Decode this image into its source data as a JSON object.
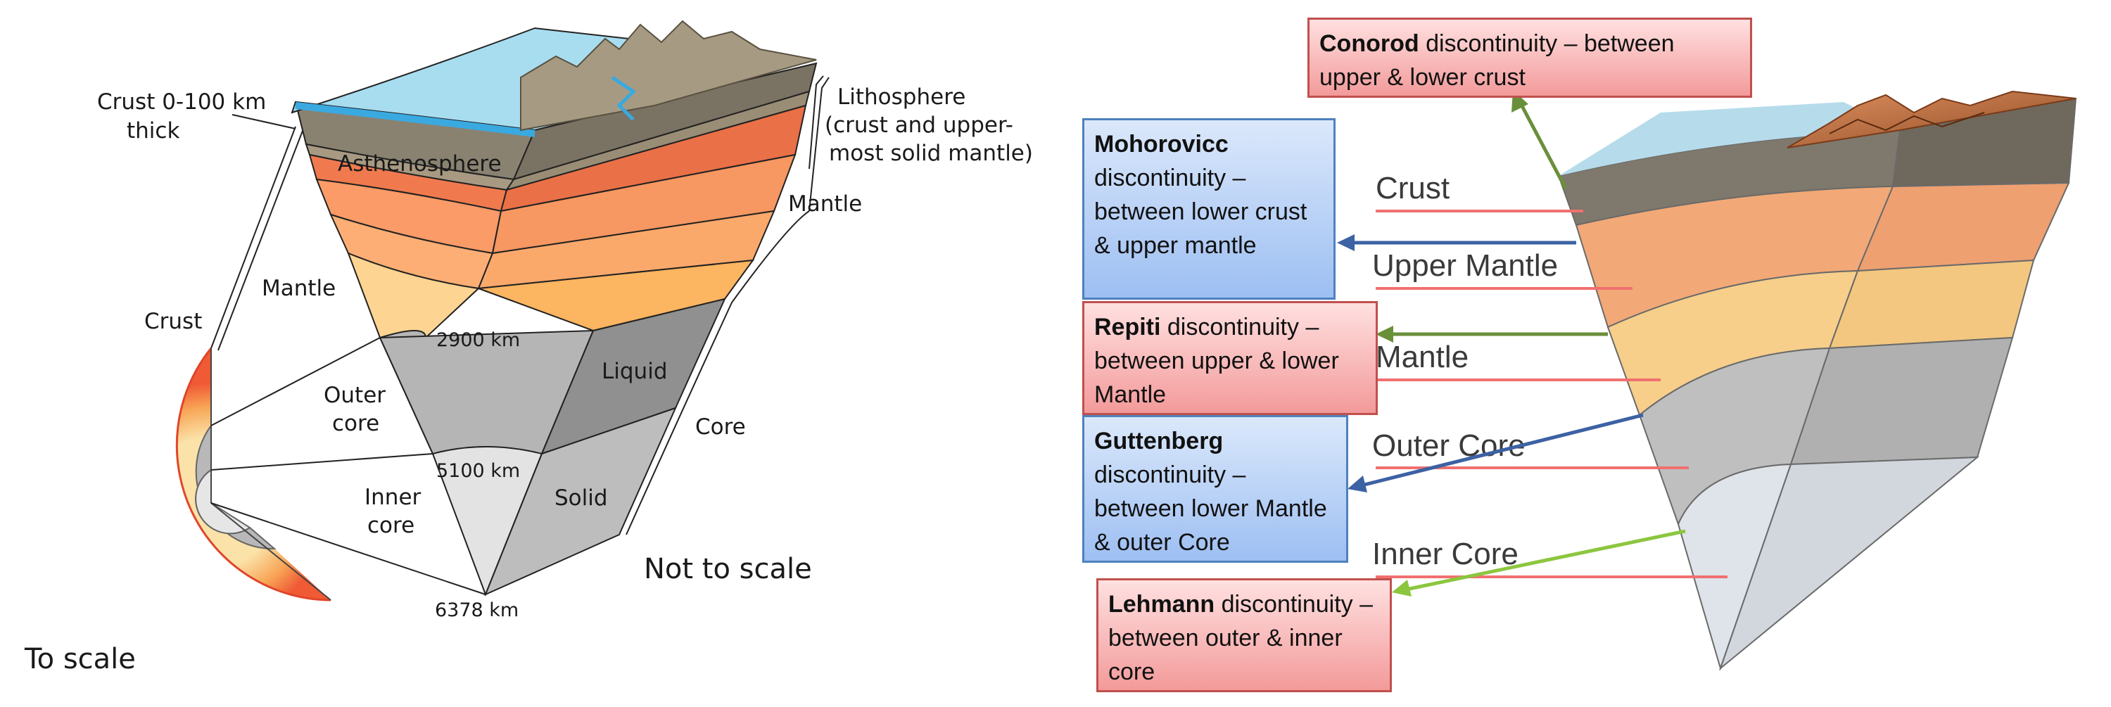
{
  "left": {
    "crust_thickness": "Crust 0-100 km",
    "crust_thickness_2": "thick",
    "asthenosphere": "Asthenosphere",
    "lithosphere_1": "Lithosphere",
    "lithosphere_2": "(crust and upper-",
    "lithosphere_3": "most solid mantle)",
    "mantle_bracket": "Mantle",
    "mantle": "Mantle",
    "crust": "Crust",
    "outer_core_1": "Outer",
    "outer_core_2": "core",
    "inner_core_1": "Inner",
    "inner_core_2": "core",
    "liquid": "Liquid",
    "solid": "Solid",
    "core": "Core",
    "depth_2900": "2900 km",
    "depth_5100": "5100 km",
    "depth_6378": "6378 km",
    "not_to_scale": "Not to scale",
    "to_scale": "To scale"
  },
  "right": {
    "layers": {
      "crust": "Crust",
      "upper_mantle": "Upper Mantle",
      "mantle": "Mantle",
      "outer_core": "Outer Core",
      "inner_core": "Inner Core"
    },
    "boxes": {
      "conorod_name": "Conorod",
      "conorod_text": " discontinuity – between upper & lower crust",
      "mohorovicc_name": "Mohorovicc",
      "mohorovicc_text": " discontinuity – between lower crust & upper mantle",
      "repiti_name": "Repiti",
      "repiti_text": " discontinuity – between upper & lower Mantle",
      "guttenberg_name": "Guttenberg",
      "guttenberg_text": " discontinuity – between lower Mantle & outer Core",
      "lehmann_name": "Lehmann",
      "lehmann_text": " discontinuity – between outer & inner core"
    }
  },
  "colors": {
    "red_box": "#f39a9a",
    "blue_box": "#9dbff2",
    "arrow_green": "#6a8f3a",
    "arrow_blue": "#3b62a3",
    "arrow_lightgreen": "#8cc63f",
    "ref_line": "#f07070"
  }
}
